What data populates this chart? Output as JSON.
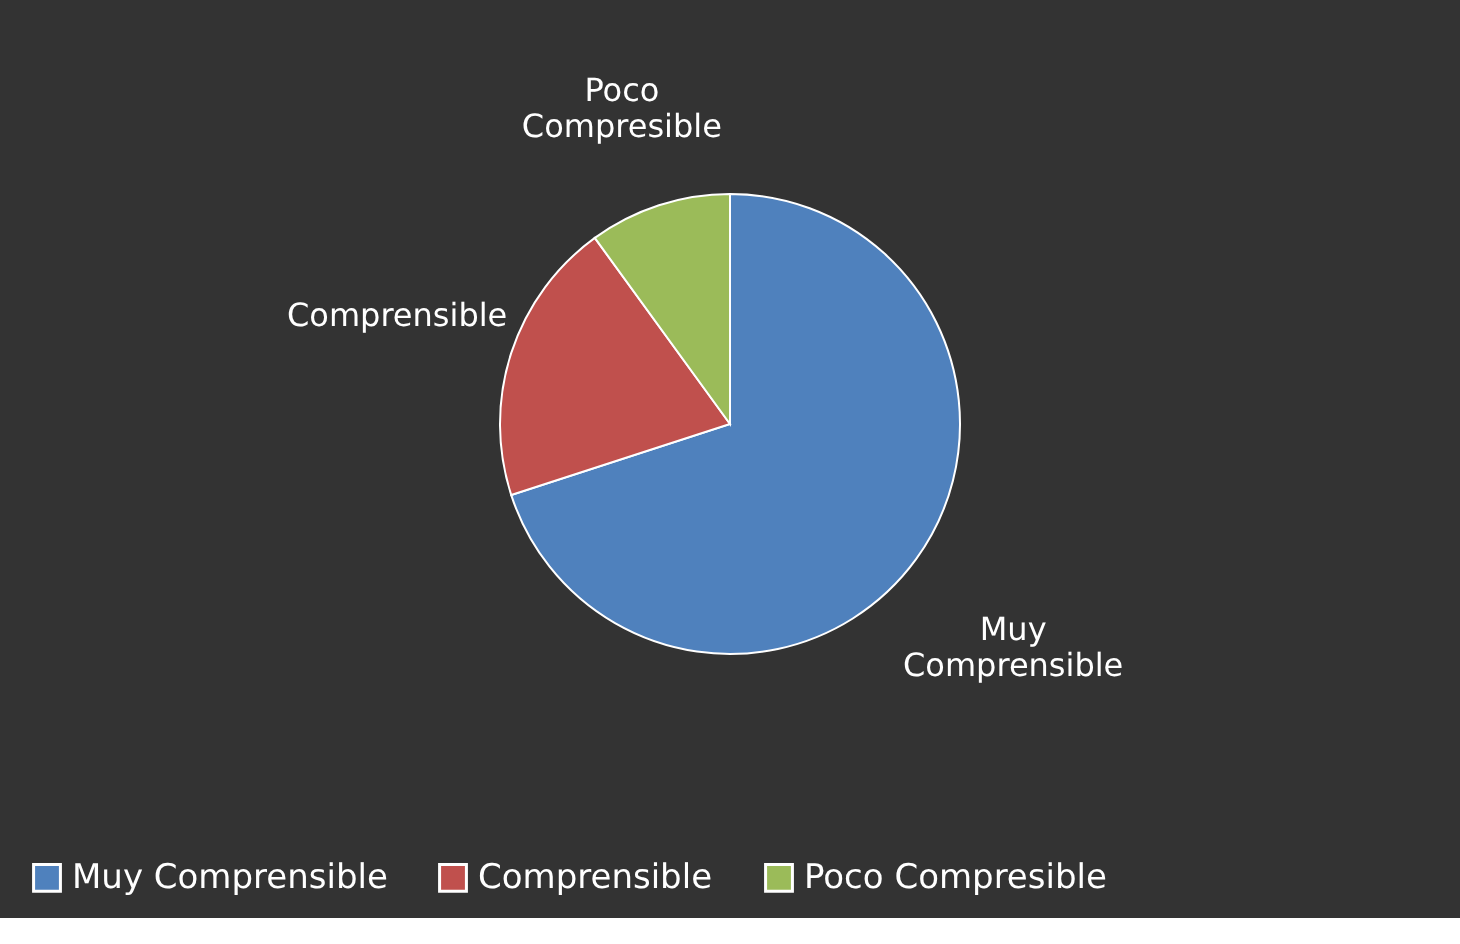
{
  "chart_data": {
    "type": "pie",
    "categories": [
      "Muy Comprensible",
      "Comprensible",
      "Poco Compresible"
    ],
    "values": [
      70,
      20,
      10
    ],
    "colors": [
      "#4f81bd",
      "#c0504d",
      "#9bbb59"
    ],
    "legend": "bottom"
  }
}
